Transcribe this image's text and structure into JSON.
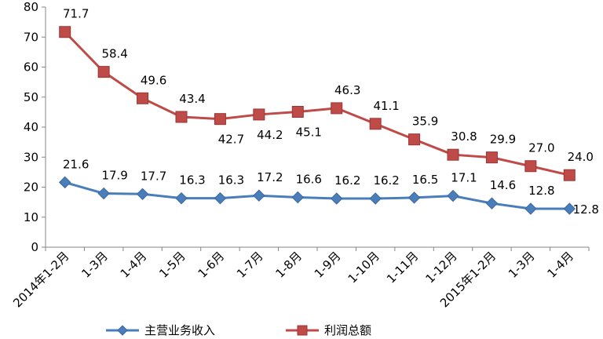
{
  "chart_data": {
    "type": "line",
    "title": "",
    "xlabel": "",
    "ylabel": "",
    "ylim": [
      0,
      80
    ],
    "yticks": [
      0,
      10,
      20,
      30,
      40,
      50,
      60,
      70,
      80
    ],
    "grid": false,
    "legend_position": "bottom",
    "categories": [
      "2014年1-2月",
      "1-3月",
      "1-4月",
      "1-5月",
      "1-6月",
      "1-7月",
      "1-8月",
      "1-9月",
      "1-10月",
      "1-11月",
      "1-12月",
      "2015年1-2月",
      "1-3月",
      "1-4月"
    ],
    "series": [
      {
        "name": "主营业务收入",
        "color": "#4a7ebb",
        "marker": "diamond",
        "values": [
          21.6,
          17.9,
          17.7,
          16.3,
          16.3,
          17.2,
          16.6,
          16.2,
          16.2,
          16.5,
          17.1,
          14.6,
          12.8,
          12.8
        ],
        "labels": [
          "21.6",
          "17.9",
          "17.7",
          "16.3",
          "16.3",
          "17.2",
          "16.6",
          "16.2",
          "16.2",
          "16.5",
          "17.1",
          "14.6",
          "12.8",
          "12.8"
        ]
      },
      {
        "name": "利润总额",
        "color": "#be4b48",
        "marker": "square",
        "values": [
          71.7,
          58.4,
          49.6,
          43.4,
          42.7,
          44.2,
          45.1,
          46.3,
          41.1,
          35.9,
          30.8,
          29.9,
          27.0,
          24.0
        ],
        "labels": [
          "71.7",
          "58.4",
          "49.6",
          "43.4",
          "42.7",
          "44.2",
          "45.1",
          "46.3",
          "41.1",
          "35.9",
          "30.8",
          "29.9",
          "27.0",
          "24.0"
        ]
      }
    ]
  }
}
